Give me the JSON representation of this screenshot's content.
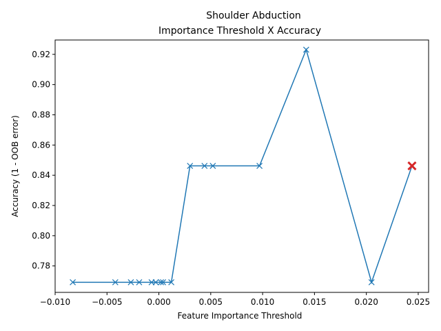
{
  "chart_data": {
    "type": "line",
    "title": "Shoulder Abduction",
    "subtitle": "Importance Threshold X Accuracy",
    "xlabel": "Feature Importance Threshold",
    "ylabel": "Accuracy (1 - OOB error)",
    "xlim": [
      -0.01,
      0.026
    ],
    "ylim": [
      0.7625,
      0.9295
    ],
    "x_ticks": [
      -0.01,
      -0.005,
      0.0,
      0.005,
      0.01,
      0.015,
      0.02,
      0.025
    ],
    "x_tick_labels": [
      "−0.010",
      "−0.005",
      "0.000",
      "0.005",
      "0.010",
      "0.015",
      "0.020",
      "0.025"
    ],
    "y_ticks": [
      0.78,
      0.8,
      0.82,
      0.84,
      0.86,
      0.88,
      0.9,
      0.92
    ],
    "y_tick_labels": [
      "0.78",
      "0.80",
      "0.82",
      "0.84",
      "0.86",
      "0.88",
      "0.90",
      "0.92"
    ],
    "grid": false,
    "series": [
      {
        "color": "#1f77b4",
        "marker": "x",
        "x": [
          -0.0083,
          -0.0042,
          -0.0027,
          -0.0019,
          -0.0007,
          -0.0003,
          0.0002,
          0.0004,
          0.0012,
          0.003,
          0.0044,
          0.0052,
          0.0097,
          0.0142,
          0.0205,
          0.0244
        ],
        "y": [
          0.7692,
          0.7692,
          0.7692,
          0.7692,
          0.7692,
          0.7692,
          0.7692,
          0.7692,
          0.7692,
          0.8462,
          0.8462,
          0.8462,
          0.8462,
          0.9231,
          0.7692,
          0.8462
        ]
      }
    ],
    "highlight": {
      "x": 0.0244,
      "y": 0.8462,
      "color": "#d62728",
      "marker": "x"
    }
  }
}
